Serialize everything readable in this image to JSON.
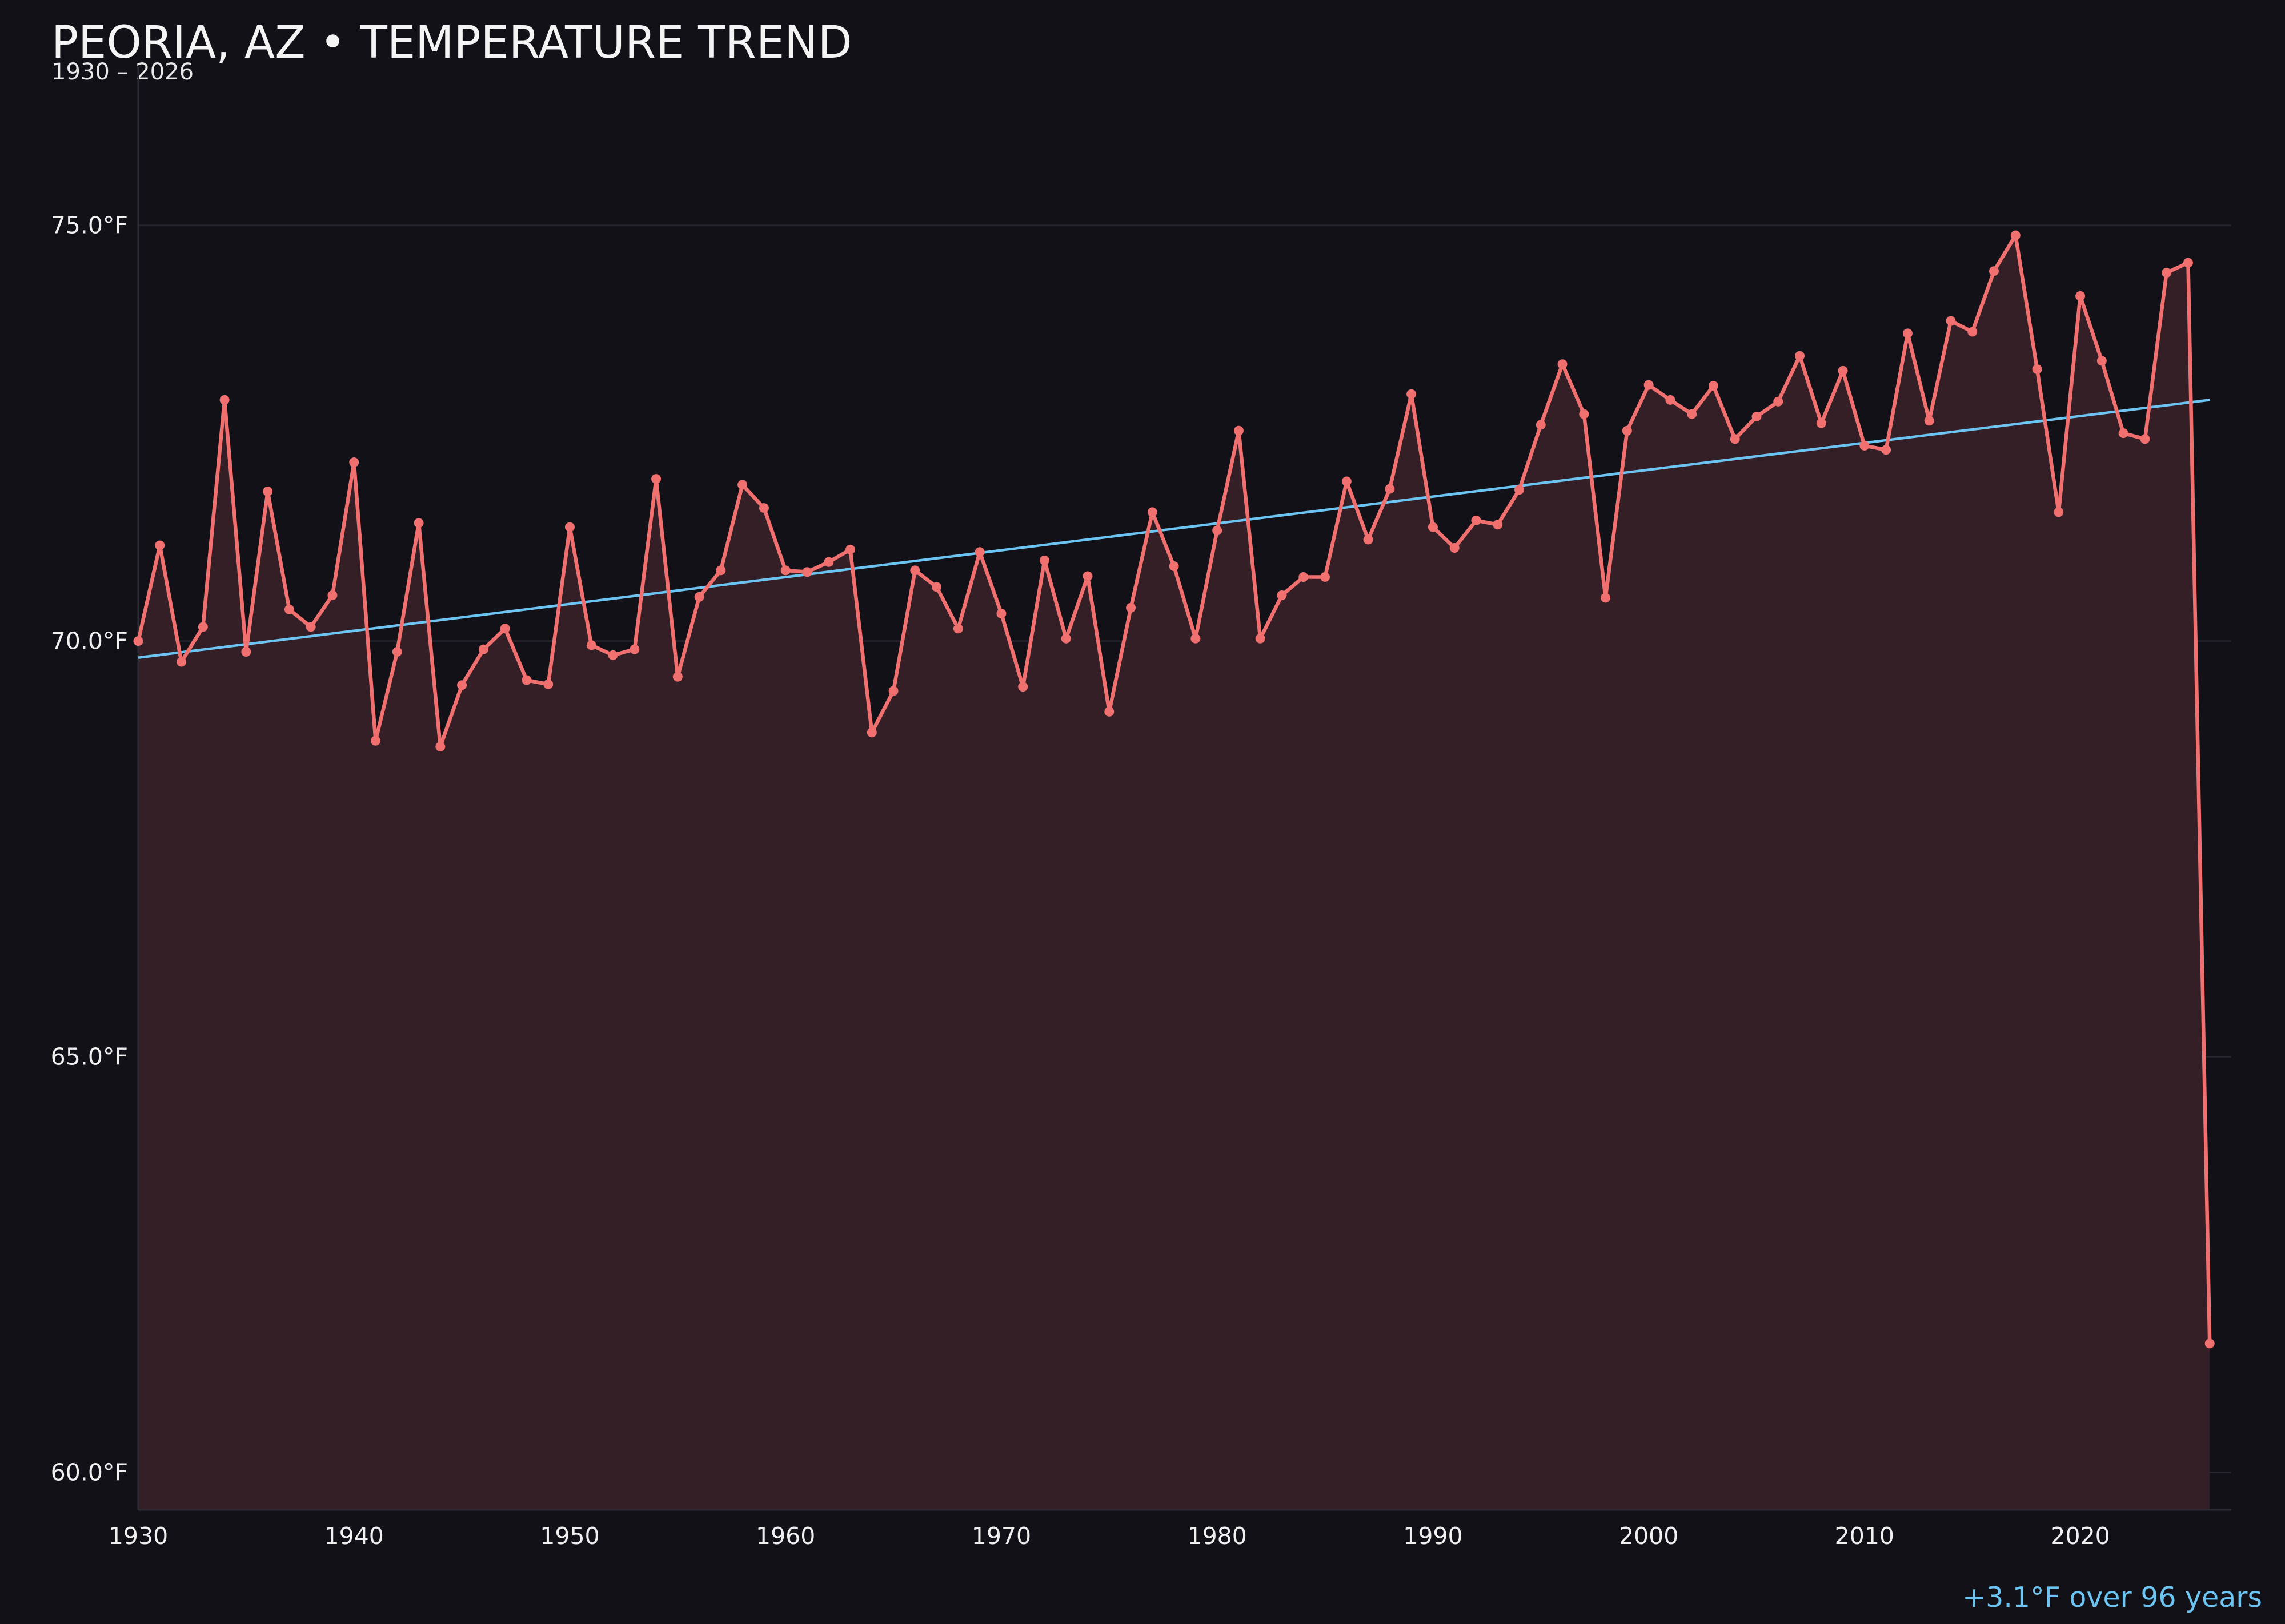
{
  "chart_data": {
    "type": "line",
    "title": "PEORIA, AZ • TEMPERATURE TREND",
    "subtitle": "1930 – 2026",
    "annotation": "+3.1°F over 96 years",
    "xlabel": "",
    "ylabel": "",
    "xlim": [
      1930,
      2027
    ],
    "ylim": [
      59.55,
      76.9
    ],
    "x_ticks": [
      1930,
      1940,
      1950,
      1960,
      1970,
      1980,
      1990,
      2000,
      2010,
      2020
    ],
    "y_ticks": [
      60.0,
      65.0,
      70.0,
      75.0
    ],
    "y_tick_labels": [
      "60.0°F",
      "65.0°F",
      "70.0°F",
      "75.0°F"
    ],
    "grid": true,
    "series": [
      {
        "color": "#f07070",
        "fill_color": "#351f26",
        "x": [
          1930,
          1931,
          1932,
          1933,
          1934,
          1935,
          1936,
          1937,
          1938,
          1939,
          1940,
          1941,
          1942,
          1943,
          1944,
          1945,
          1946,
          1947,
          1948,
          1949,
          1950,
          1951,
          1952,
          1953,
          1954,
          1955,
          1956,
          1957,
          1958,
          1959,
          1960,
          1961,
          1962,
          1963,
          1964,
          1965,
          1966,
          1967,
          1968,
          1969,
          1970,
          1971,
          1972,
          1973,
          1974,
          1975,
          1976,
          1977,
          1978,
          1979,
          1980,
          1981,
          1982,
          1983,
          1984,
          1985,
          1986,
          1987,
          1988,
          1989,
          1990,
          1991,
          1992,
          1993,
          1994,
          1995,
          1996,
          1997,
          1998,
          1999,
          2000,
          2001,
          2002,
          2003,
          2004,
          2005,
          2006,
          2007,
          2008,
          2009,
          2010,
          2011,
          2012,
          2013,
          2014,
          2015,
          2016,
          2017,
          2018,
          2019,
          2020,
          2021,
          2022,
          2023,
          2024,
          2025,
          2026
        ],
        "values": [
          70.0,
          71.15,
          69.75,
          70.17,
          72.9,
          69.87,
          71.8,
          70.38,
          70.17,
          70.55,
          72.15,
          68.8,
          69.87,
          71.42,
          68.73,
          69.47,
          69.9,
          70.15,
          69.53,
          69.48,
          71.37,
          69.95,
          69.83,
          69.9,
          71.95,
          69.57,
          70.53,
          70.85,
          71.88,
          71.6,
          70.85,
          70.83,
          70.95,
          71.1,
          68.9,
          69.4,
          70.85,
          70.65,
          70.15,
          71.07,
          70.33,
          69.45,
          70.97,
          70.03,
          70.78,
          69.15,
          70.4,
          71.55,
          70.9,
          70.03,
          71.33,
          72.53,
          70.03,
          70.55,
          70.77,
          70.77,
          71.92,
          71.22,
          71.83,
          72.97,
          71.37,
          71.12,
          71.45,
          71.4,
          71.82,
          72.6,
          73.33,
          72.73,
          70.52,
          72.53,
          73.08,
          72.9,
          72.73,
          73.07,
          72.43,
          72.7,
          72.88,
          73.43,
          72.62,
          73.25,
          72.35,
          72.3,
          73.7,
          72.65,
          73.85,
          73.72,
          74.45,
          74.88,
          73.27,
          71.55,
          74.15,
          73.37,
          72.5,
          72.43,
          74.43,
          74.55,
          61.55
        ]
      },
      {
        "color": "#6cc4f2",
        "x": [
          1930,
          2026
        ],
        "values": [
          69.8,
          72.9
        ]
      }
    ]
  }
}
